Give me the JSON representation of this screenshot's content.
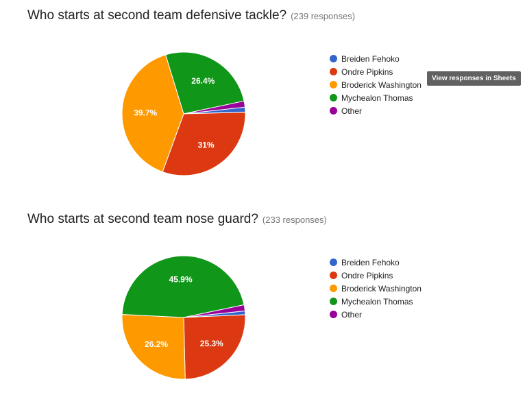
{
  "colors": {
    "blue": "#3366cc",
    "red": "#dc3912",
    "orange": "#ff9900",
    "green": "#109618",
    "purple": "#990099"
  },
  "tooltip": "View responses in Sheets",
  "chart_data": [
    {
      "type": "pie",
      "title": "Who starts at second team defensive tackle?",
      "responses_label": "(239 responses)",
      "categories": [
        "Breiden Fehoko",
        "Ondre Pipkins",
        "Broderick Washington",
        "Mychealon Thomas",
        "Other"
      ],
      "values": [
        1.3,
        31.0,
        39.7,
        26.4,
        1.6
      ],
      "data_labels": [
        "",
        "31%",
        "39.7%",
        "26.4%",
        ""
      ],
      "legend_position": "right"
    },
    {
      "type": "pie",
      "title": "Who starts at second team nose guard?",
      "responses_label": "(233 responses)",
      "categories": [
        "Breiden Fehoko",
        "Ondre Pipkins",
        "Broderick Washington",
        "Mychealon Thomas",
        "Other"
      ],
      "values": [
        1.0,
        25.3,
        26.2,
        45.9,
        1.6
      ],
      "data_labels": [
        "",
        "25.3%",
        "26.2%",
        "45.9%",
        ""
      ],
      "legend_position": "right"
    }
  ]
}
